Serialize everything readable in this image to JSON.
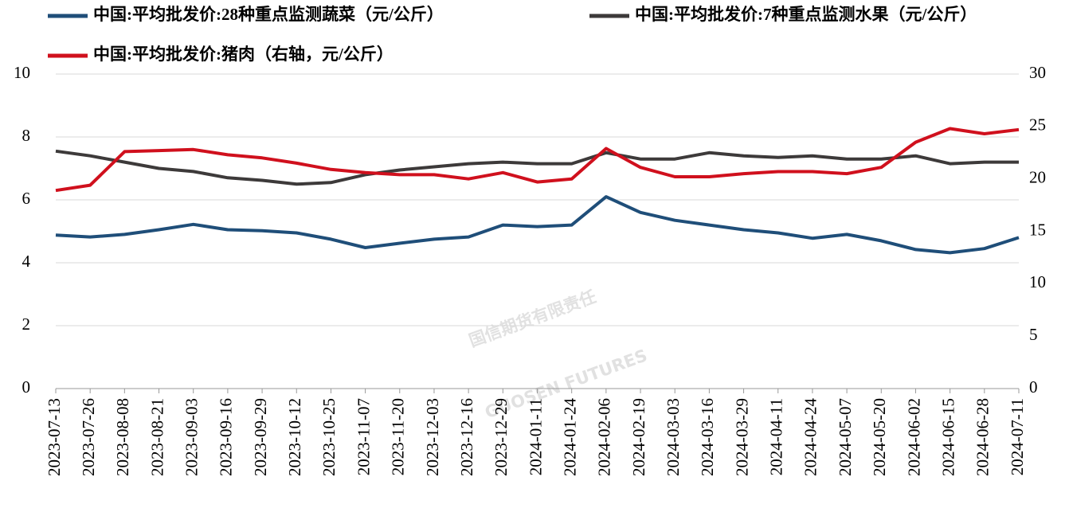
{
  "chart_data": {
    "type": "line",
    "categories": [
      "2023-07-13",
      "2023-07-26",
      "2023-08-08",
      "2023-08-21",
      "2023-09-03",
      "2023-09-16",
      "2023-09-29",
      "2023-10-12",
      "2023-10-25",
      "2023-11-07",
      "2023-11-20",
      "2023-12-03",
      "2023-12-16",
      "2023-12-29",
      "2024-01-11",
      "2024-01-24",
      "2024-02-06",
      "2024-02-19",
      "2024-03-03",
      "2024-03-16",
      "2024-03-29",
      "2024-04-11",
      "2024-04-24",
      "2024-05-07",
      "2024-05-20",
      "2024-06-02",
      "2024-06-15",
      "2024-06-28",
      "2024-07-11"
    ],
    "series": [
      {
        "name": "中国:平均批发价:28种重点监测蔬菜（元/公斤）",
        "color": "#1f4e79",
        "values": [
          4.88,
          4.82,
          4.9,
          5.05,
          5.22,
          5.05,
          5.02,
          4.95,
          4.75,
          4.48,
          4.62,
          4.75,
          4.82,
          5.2,
          5.15,
          5.2,
          6.1,
          5.6,
          5.35,
          5.2,
          5.05,
          4.95,
          4.78,
          4.9,
          4.7,
          4.42,
          4.32,
          4.45,
          4.8
        ]
      },
      {
        "name": "中国:平均批发价:7种重点监测水果（元/公斤）",
        "color": "#3d3a3a",
        "values": [
          7.55,
          7.4,
          7.2,
          7.0,
          6.9,
          6.7,
          6.62,
          6.5,
          6.55,
          6.8,
          6.95,
          7.05,
          7.15,
          7.2,
          7.15,
          7.15,
          7.5,
          7.3,
          7.3,
          7.5,
          7.4,
          7.35,
          7.4,
          7.3,
          7.3,
          7.4,
          7.15,
          7.2,
          7.2
        ]
      },
      {
        "name": "中国:平均批发价:猪肉（右轴，元/公斤）",
        "color": "#d0101d",
        "axis": "y2",
        "values": [
          18.9,
          19.4,
          22.6,
          22.7,
          22.8,
          22.3,
          22.0,
          21.5,
          20.9,
          20.6,
          20.4,
          20.4,
          20.0,
          20.6,
          19.7,
          20.0,
          22.9,
          21.1,
          20.2,
          20.2,
          20.5,
          20.7,
          20.7,
          20.5,
          21.1,
          23.5,
          24.8,
          24.3,
          24.7
        ]
      }
    ],
    "ylim": [
      0,
      10
    ],
    "yticks": [
      0,
      2,
      4,
      6,
      8,
      10
    ],
    "y2lim": [
      0,
      30
    ],
    "y2ticks": [
      0,
      5,
      10,
      15,
      20,
      25,
      30
    ],
    "grid": true,
    "legend": "top",
    "watermark": [
      "国信期货有限责任",
      "GUOSEN FUTURES"
    ]
  }
}
